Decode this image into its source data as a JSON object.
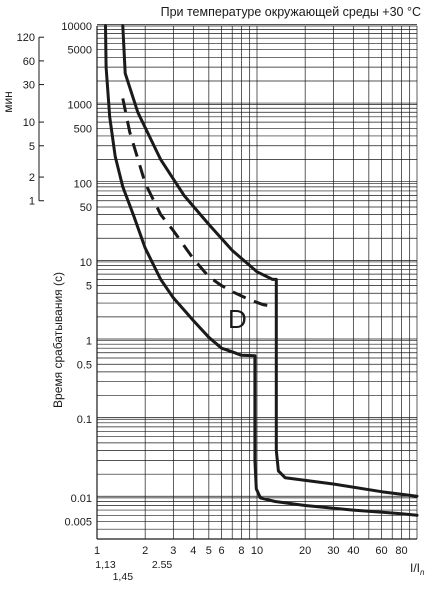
{
  "chart_data": {
    "type": "line",
    "title": "При температуре окружающей среды +30 °C",
    "xlabel": "I/I",
    "xlabel_sub": "n",
    "ylabel": "Время срабатывания (с)",
    "ylabel_alt": "мин",
    "x_scale": "log",
    "y_scale": "log",
    "xlim": [
      1,
      100
    ],
    "ylim": [
      0.003,
      10000
    ],
    "grid": true,
    "curve_label": "D",
    "x_ticks": [
      {
        "value": 1,
        "label": "1"
      },
      {
        "value": 2,
        "label": "2"
      },
      {
        "value": 3,
        "label": "3"
      },
      {
        "value": 4,
        "label": "4"
      },
      {
        "value": 5,
        "label": "5"
      },
      {
        "value": 6,
        "label": "6"
      },
      {
        "value": 8,
        "label": "8"
      },
      {
        "value": 10,
        "label": "10"
      },
      {
        "value": 20,
        "label": "20"
      },
      {
        "value": 30,
        "label": "30"
      },
      {
        "value": 40,
        "label": "40"
      },
      {
        "value": 60,
        "label": "60"
      },
      {
        "value": 80,
        "label": "80"
      }
    ],
    "x_ticks_extra": [
      {
        "value": 1.13,
        "label": "1,13",
        "row": 1
      },
      {
        "value": 1.45,
        "label": "1,45",
        "row": 2
      },
      {
        "value": 2.55,
        "label": "2.55",
        "row": 1
      }
    ],
    "y_ticks": [
      {
        "value": 10000,
        "label": "10000"
      },
      {
        "value": 5000,
        "label": "5000"
      },
      {
        "value": 1000,
        "label": "1000"
      },
      {
        "value": 500,
        "label": "500"
      },
      {
        "value": 100,
        "label": "100"
      },
      {
        "value": 50,
        "label": "50"
      },
      {
        "value": 10,
        "label": "10"
      },
      {
        "value": 5,
        "label": "5"
      },
      {
        "value": 1,
        "label": "1"
      },
      {
        "value": 0.5,
        "label": "0.5"
      },
      {
        "value": 0.1,
        "label": "0.1"
      },
      {
        "value": 0.01,
        "label": "0.01"
      },
      {
        "value": 0.005,
        "label": "0.005"
      }
    ],
    "y_ticks_min": [
      {
        "value": 7200,
        "label": "120"
      },
      {
        "value": 3600,
        "label": "60"
      },
      {
        "value": 1800,
        "label": "30"
      },
      {
        "value": 600,
        "label": "10"
      },
      {
        "value": 300,
        "label": "5"
      },
      {
        "value": 120,
        "label": "2"
      },
      {
        "value": 60,
        "label": "1"
      }
    ],
    "series": [
      {
        "style": "solid",
        "points": [
          [
            1.13,
            10000
          ],
          [
            1.14,
            3000
          ],
          [
            1.2,
            700
          ],
          [
            1.3,
            220
          ],
          [
            1.45,
            90
          ],
          [
            1.7,
            38
          ],
          [
            2,
            15
          ],
          [
            2.5,
            6
          ],
          [
            3,
            3.5
          ],
          [
            4,
            1.8
          ],
          [
            5,
            1.1
          ],
          [
            6,
            0.8
          ],
          [
            7,
            0.72
          ],
          [
            8,
            0.65
          ],
          [
            9.7,
            0.64
          ],
          [
            9.7,
            0.03
          ],
          [
            9.9,
            0.013
          ],
          [
            10.5,
            0.01
          ],
          [
            13,
            0.009
          ],
          [
            20,
            0.008
          ],
          [
            40,
            0.007
          ],
          [
            80,
            0.0063
          ],
          [
            100,
            0.006
          ]
        ]
      },
      {
        "style": "solid",
        "points": [
          [
            1.45,
            10000
          ],
          [
            1.5,
            2500
          ],
          [
            1.8,
            800
          ],
          [
            2.5,
            200
          ],
          [
            3.5,
            70
          ],
          [
            5,
            30
          ],
          [
            7,
            14
          ],
          [
            10,
            7.5
          ],
          [
            12.5,
            6
          ],
          [
            13.2,
            6
          ],
          [
            13.2,
            0.04
          ],
          [
            13.6,
            0.022
          ],
          [
            15,
            0.018
          ],
          [
            30,
            0.015
          ],
          [
            60,
            0.012
          ],
          [
            100,
            0.0105
          ]
        ]
      },
      {
        "style": "dashed",
        "points": [
          [
            1.45,
            1200
          ],
          [
            1.6,
            450
          ],
          [
            2,
            100
          ],
          [
            2.5,
            40
          ],
          [
            3,
            25
          ],
          [
            4,
            11
          ],
          [
            5,
            6.5
          ],
          [
            6,
            5
          ],
          [
            7,
            4.2
          ],
          [
            9,
            3.3
          ],
          [
            11,
            2.85
          ],
          [
            13,
            2.7
          ]
        ]
      }
    ]
  }
}
